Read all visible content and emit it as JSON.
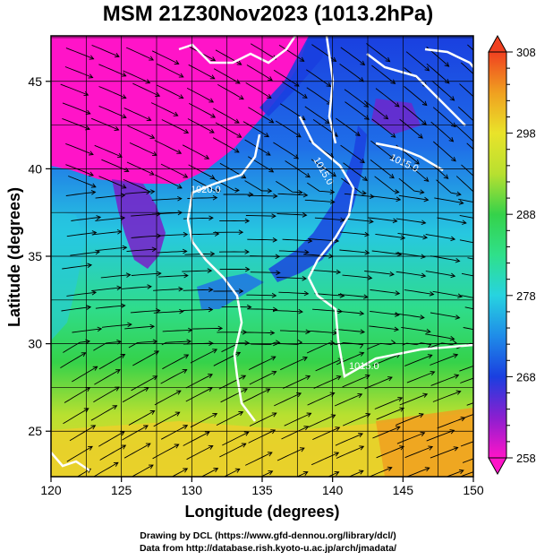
{
  "title": "MSM 21Z30Nov2023 (1013.2hPa)",
  "credit_line1": "Drawing by DCL (https://www.gfd-dennou.org/library/dcl/)",
  "credit_line2": "Data from http://database.rish.kyoto-u.ac.jp/arch/jmadata/",
  "colors": {
    "magenta": "#ff14c8",
    "purple": "#7a1fc8",
    "blue": "#1a3fe0",
    "cyan": "#27d3e0",
    "green": "#35d24a",
    "yellow": "#e9e32a",
    "orange": "#f0a020",
    "contour": "#ffffff"
  },
  "chart_data": {
    "type": "heatmap",
    "title": "MSM 21Z30Nov2023 (1013.2hPa)",
    "xlabel": "Longitude (degrees)",
    "ylabel": "Latitude  (degrees)",
    "xlim": [
      120,
      150
    ],
    "ylim": [
      22.4,
      47.6
    ],
    "x_ticks": [
      "120",
      "125",
      "130",
      "135",
      "140",
      "145",
      "150"
    ],
    "y_ticks": [
      "25",
      "30",
      "35",
      "40",
      "45"
    ],
    "grid": true,
    "colorbar": {
      "min": 258,
      "max": 308,
      "ticks": [
        "258",
        "268",
        "278",
        "288",
        "298",
        "308"
      ],
      "extend": "both"
    },
    "contour_labels": [
      "1020.0",
      "1015.0",
      "1015.0",
      "1015.0"
    ]
  }
}
